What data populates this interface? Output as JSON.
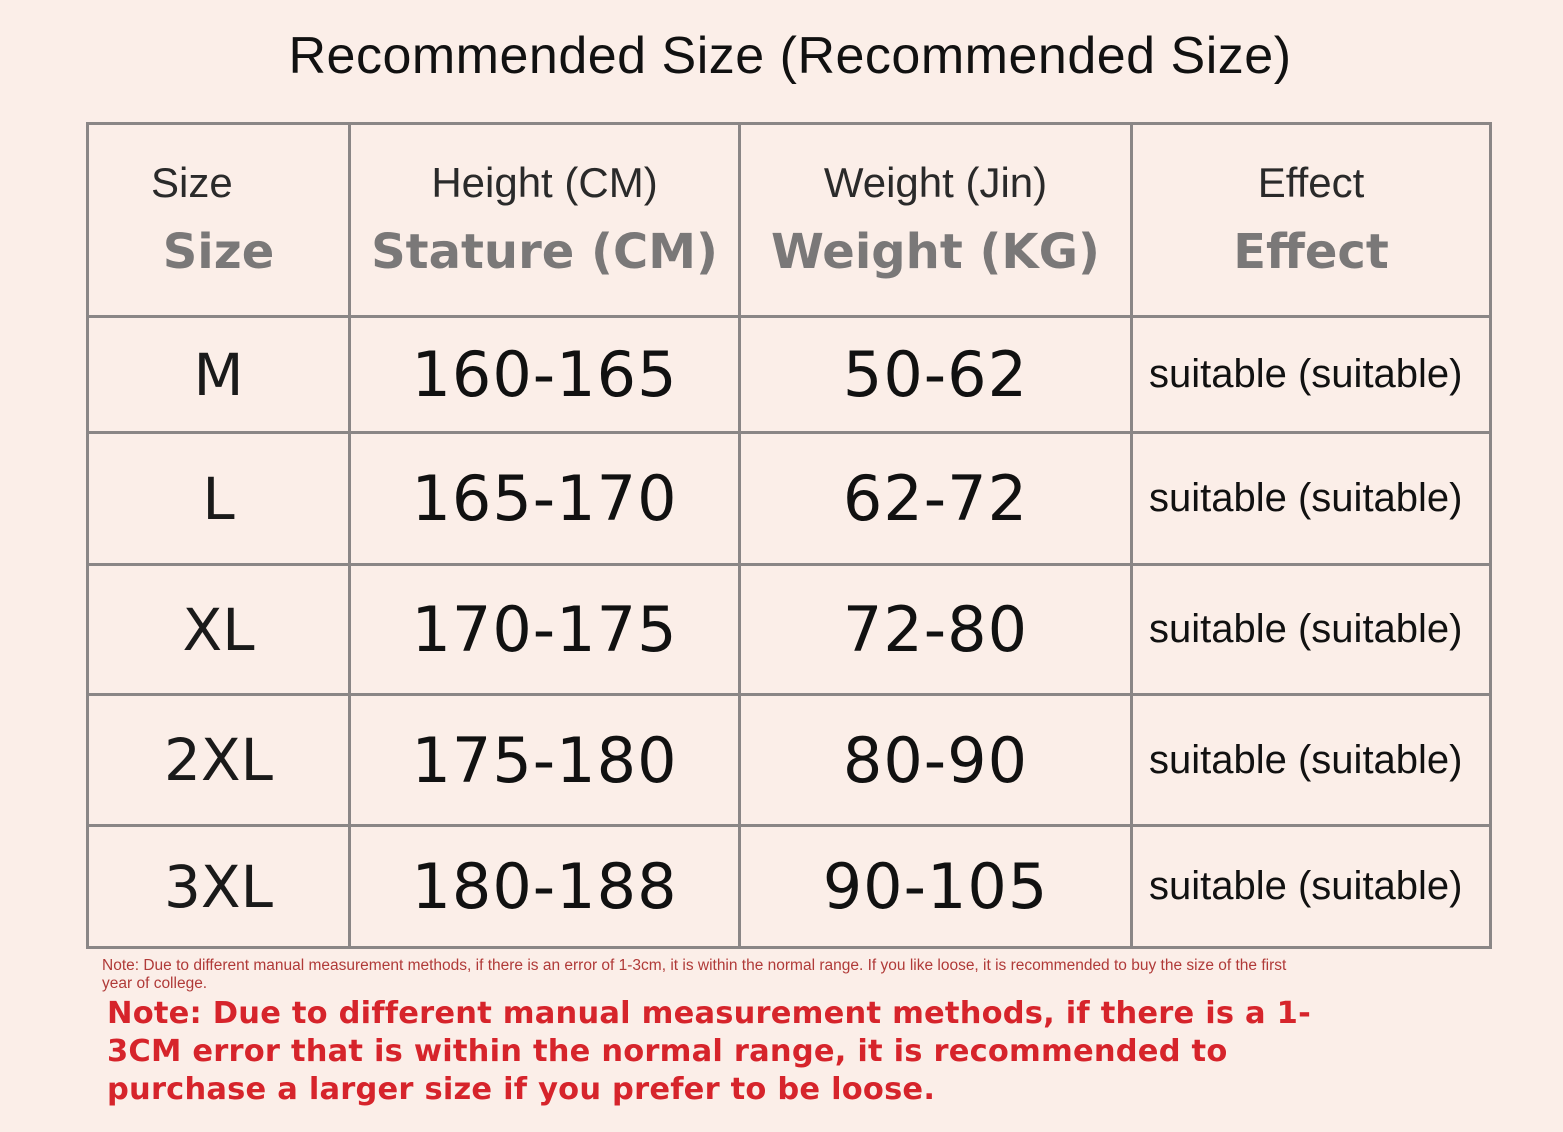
{
  "title": "Recommended Size (Recommended Size)",
  "table": {
    "headers": [
      {
        "top": "Size",
        "bottom": "Size"
      },
      {
        "top": "Height (CM)",
        "bottom": "Stature (CM)"
      },
      {
        "top": "Weight (Jin)",
        "bottom": "Weight (KG)"
      },
      {
        "top": "Effect",
        "bottom": "Effect"
      }
    ],
    "rows": [
      {
        "size": "M",
        "height": "160-165",
        "weight": "50-62",
        "effect": "suitable (suitable)"
      },
      {
        "size": "L",
        "height": "165-170",
        "weight": "62-72",
        "effect": "suitable (suitable)"
      },
      {
        "size": "XL",
        "height": "170-175",
        "weight": "72-80",
        "effect": "suitable (suitable)"
      },
      {
        "size": "2XL",
        "height": "175-180",
        "weight": "80-90",
        "effect": "suitable (suitable)"
      },
      {
        "size": "3XL",
        "height": "180-188",
        "weight": "90-105",
        "effect": "suitable (suitable)"
      }
    ]
  },
  "notes": {
    "small": "Note: Due to different manual measurement methods, if there is an error of 1-3cm, it is within the normal range. If you like loose, it is recommended to buy the size of the first year of college.",
    "large": "Note: Due to different manual measurement methods, if there is a 1-3CM error that is within the normal range, it is recommended to purchase a larger size if you prefer to be loose."
  },
  "colors": {
    "background": "#fbeee8",
    "grid": "#8a8686",
    "header_secondary": "#7a7878",
    "note_small": "#b03a38",
    "note_large": "#d6242b"
  }
}
